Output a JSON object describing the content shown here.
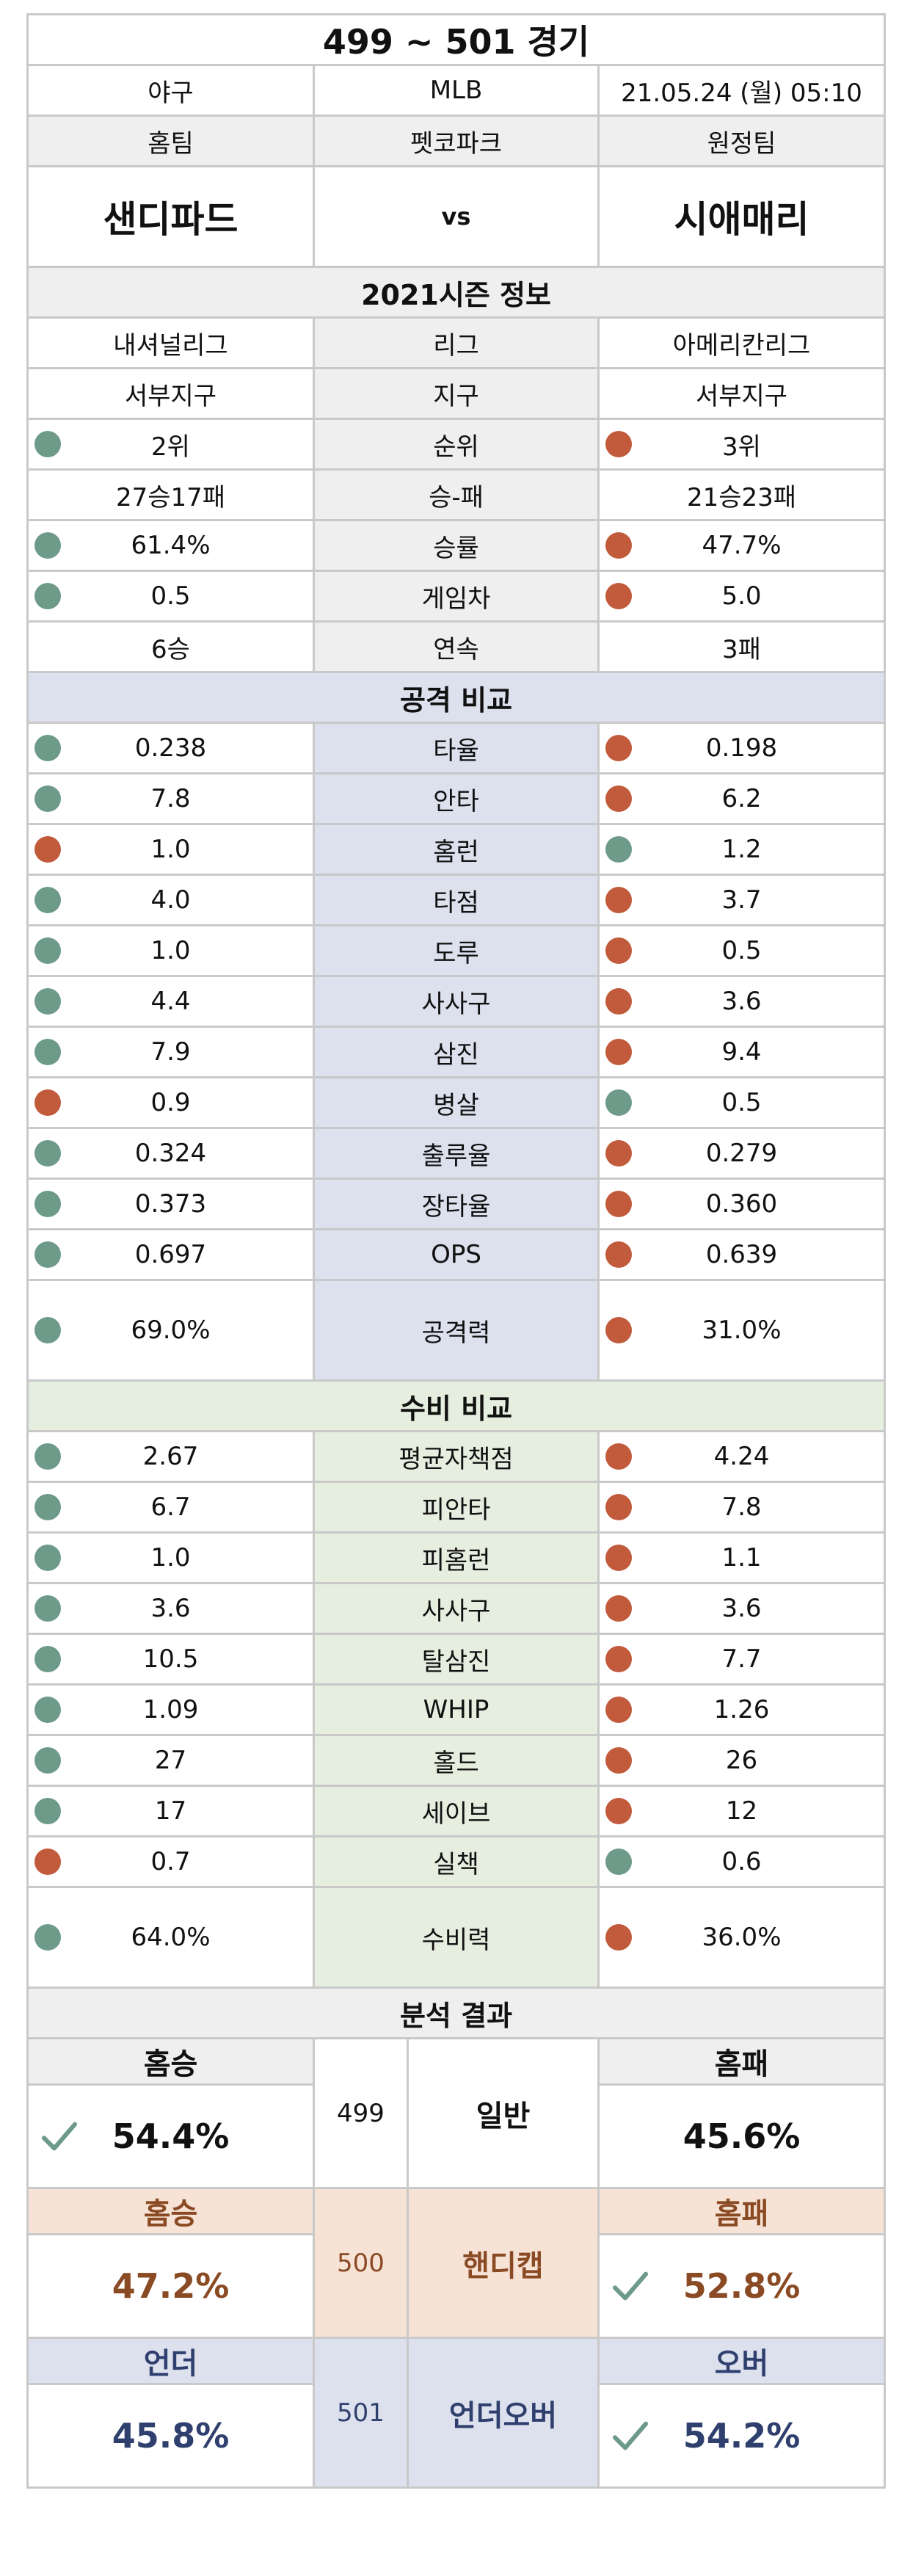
{
  "title": "499 ~ 501 경기",
  "info": {
    "sport": "야구",
    "league": "MLB",
    "datetime": "21.05.24 (월) 05:10"
  },
  "labels": {
    "home": "홈팀",
    "stadium": "펫코파크",
    "away": "원정팀",
    "vs": "vs"
  },
  "teams": {
    "home": "샌디파드",
    "away": "시애매리"
  },
  "season": {
    "title": "2021시즌 정보",
    "rows": [
      {
        "label": "리그",
        "home": "내셔널리그",
        "away": "아메리칸리그",
        "home_dot": "",
        "away_dot": ""
      },
      {
        "label": "지구",
        "home": "서부지구",
        "away": "서부지구",
        "home_dot": "",
        "away_dot": ""
      },
      {
        "label": "순위",
        "home": "2위",
        "away": "3위",
        "home_dot": "green",
        "away_dot": "red"
      },
      {
        "label": "승-패",
        "home": "27승17패",
        "away": "21승23패",
        "home_dot": "",
        "away_dot": ""
      },
      {
        "label": "승률",
        "home": "61.4%",
        "away": "47.7%",
        "home_dot": "green",
        "away_dot": "red"
      },
      {
        "label": "게임차",
        "home": "0.5",
        "away": "5.0",
        "home_dot": "green",
        "away_dot": "red"
      },
      {
        "label": "연속",
        "home": "6승",
        "away": "3패",
        "home_dot": "",
        "away_dot": ""
      }
    ]
  },
  "attack": {
    "title": "공격 비교",
    "rows": [
      {
        "label": "타율",
        "home": "0.238",
        "away": "0.198",
        "home_dot": "green",
        "away_dot": "red"
      },
      {
        "label": "안타",
        "home": "7.8",
        "away": "6.2",
        "home_dot": "green",
        "away_dot": "red"
      },
      {
        "label": "홈런",
        "home": "1.0",
        "away": "1.2",
        "home_dot": "red",
        "away_dot": "green"
      },
      {
        "label": "타점",
        "home": "4.0",
        "away": "3.7",
        "home_dot": "green",
        "away_dot": "red"
      },
      {
        "label": "도루",
        "home": "1.0",
        "away": "0.5",
        "home_dot": "green",
        "away_dot": "red"
      },
      {
        "label": "사사구",
        "home": "4.4",
        "away": "3.6",
        "home_dot": "green",
        "away_dot": "red"
      },
      {
        "label": "삼진",
        "home": "7.9",
        "away": "9.4",
        "home_dot": "green",
        "away_dot": "red"
      },
      {
        "label": "병살",
        "home": "0.9",
        "away": "0.5",
        "home_dot": "red",
        "away_dot": "green"
      },
      {
        "label": "출루율",
        "home": "0.324",
        "away": "0.279",
        "home_dot": "green",
        "away_dot": "red"
      },
      {
        "label": "장타율",
        "home": "0.373",
        "away": "0.360",
        "home_dot": "green",
        "away_dot": "red"
      },
      {
        "label": "OPS",
        "home": "0.697",
        "away": "0.639",
        "home_dot": "green",
        "away_dot": "red"
      }
    ],
    "total": {
      "label": "공격력",
      "home": "69.0%",
      "away": "31.0%",
      "home_dot": "green",
      "away_dot": "red"
    }
  },
  "defense": {
    "title": "수비 비교",
    "rows": [
      {
        "label": "평균자책점",
        "home": "2.67",
        "away": "4.24",
        "home_dot": "green",
        "away_dot": "red"
      },
      {
        "label": "피안타",
        "home": "6.7",
        "away": "7.8",
        "home_dot": "green",
        "away_dot": "red"
      },
      {
        "label": "피홈런",
        "home": "1.0",
        "away": "1.1",
        "home_dot": "green",
        "away_dot": "red"
      },
      {
        "label": "사사구",
        "home": "3.6",
        "away": "3.6",
        "home_dot": "green",
        "away_dot": "red"
      },
      {
        "label": "탈삼진",
        "home": "10.5",
        "away": "7.7",
        "home_dot": "green",
        "away_dot": "red"
      },
      {
        "label": "WHIP",
        "home": "1.09",
        "away": "1.26",
        "home_dot": "green",
        "away_dot": "red"
      },
      {
        "label": "홀드",
        "home": "27",
        "away": "26",
        "home_dot": "green",
        "away_dot": "red"
      },
      {
        "label": "세이브",
        "home": "17",
        "away": "12",
        "home_dot": "green",
        "away_dot": "red"
      },
      {
        "label": "실책",
        "home": "0.7",
        "away": "0.6",
        "home_dot": "red",
        "away_dot": "green"
      }
    ],
    "total": {
      "label": "수비력",
      "home": "64.0%",
      "away": "36.0%",
      "home_dot": "green",
      "away_dot": "red"
    }
  },
  "analysis": {
    "title": "분석 결과",
    "general": {
      "left_label": "홈승",
      "right_label": "홈패",
      "num": "499",
      "name": "일반",
      "left": "54.4%",
      "right": "45.6%",
      "pick": "left"
    },
    "handicap": {
      "left_label": "홈승",
      "right_label": "홈패",
      "num": "500",
      "name": "핸디캡",
      "left": "47.2%",
      "right": "52.8%",
      "pick": "right"
    },
    "underover": {
      "left_label": "언더",
      "right_label": "오버",
      "num": "501",
      "name": "언더오버",
      "left": "45.8%",
      "right": "54.2%",
      "pick": "right"
    }
  },
  "colors": {
    "dot_good": "#6e9a8a",
    "dot_bad": "#c25a3c",
    "handicap": "#8a4a24",
    "underover": "#2f3f6e"
  },
  "icons": {
    "pick": "checkmark-icon",
    "indicator": "status-dot-icon"
  }
}
